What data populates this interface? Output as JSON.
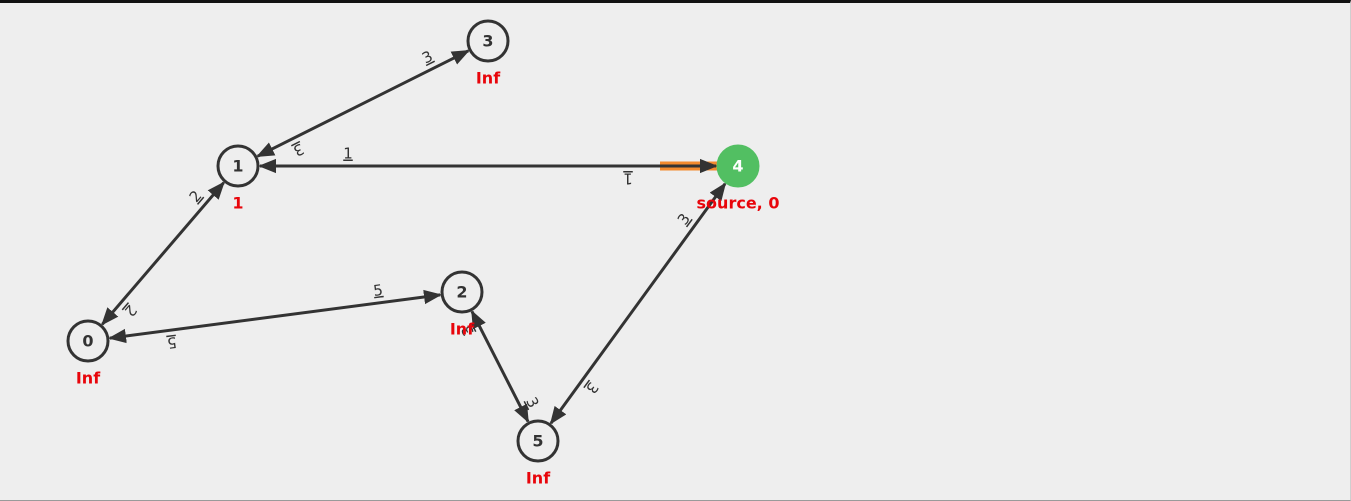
{
  "colors": {
    "edge": "#333333",
    "node_border": "#333333",
    "node_fill": "#eeeeee",
    "source_fill": "#52bf62",
    "highlight": "#f28a2e",
    "distance_text": "#e8050b",
    "node_text": "#333333",
    "source_text": "#ffffff"
  },
  "nodes": [
    {
      "id": "0",
      "label": "0",
      "dist": "Inf",
      "source": false
    },
    {
      "id": "1",
      "label": "1",
      "dist": "1",
      "source": false
    },
    {
      "id": "2",
      "label": "2",
      "dist": "Inf",
      "source": false
    },
    {
      "id": "3",
      "label": "3",
      "dist": "Inf",
      "source": false
    },
    {
      "id": "4",
      "label": "4",
      "dist": "source, 0",
      "source": true
    },
    {
      "id": "5",
      "label": "5",
      "dist": "Inf",
      "source": false
    }
  ],
  "edges": [
    {
      "id": "e-1-3",
      "from": "1",
      "to": "3",
      "weight_fwd": "3",
      "weight_rev": "3",
      "highlight": false
    },
    {
      "id": "e-4-1",
      "from": "4",
      "to": "1",
      "weight_fwd": "1",
      "weight_rev": "1",
      "highlight": true
    },
    {
      "id": "e-0-1",
      "from": "0",
      "to": "1",
      "weight_fwd": "2",
      "weight_rev": "2",
      "highlight": false
    },
    {
      "id": "e-0-2",
      "from": "0",
      "to": "2",
      "weight_fwd": "5",
      "weight_rev": "5",
      "highlight": false
    },
    {
      "id": "e-2-5",
      "from": "2",
      "to": "5",
      "weight_fwd": "3",
      "weight_rev": "3",
      "highlight": false
    },
    {
      "id": "e-5-4",
      "from": "5",
      "to": "4",
      "weight_fwd": "3",
      "weight_rev": "3",
      "highlight": false
    }
  ]
}
